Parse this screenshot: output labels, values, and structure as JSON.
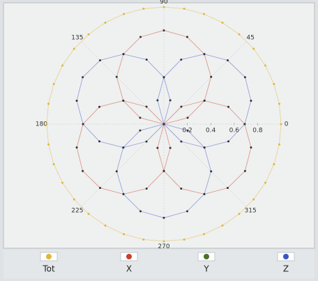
{
  "chart_data": {
    "type": "polar",
    "rlim": [
      0,
      1
    ],
    "rticks": [
      0.2,
      0.4,
      0.6,
      0.8
    ],
    "thetaticks": [
      0,
      45,
      90,
      135,
      180,
      225,
      270,
      315
    ],
    "grid": true,
    "legend": "bottom",
    "series": [
      {
        "name": "Tot",
        "color": "#e0b83a",
        "theta": [
          0,
          10,
          20,
          30,
          40,
          50,
          60,
          70,
          80,
          90,
          100,
          110,
          120,
          130,
          140,
          150,
          160,
          170,
          180,
          190,
          200,
          210,
          220,
          230,
          240,
          250,
          260,
          270,
          280,
          290,
          300,
          310,
          320,
          330,
          340,
          350
        ],
        "r": [
          1,
          1,
          1,
          1,
          1,
          1,
          1,
          1,
          1,
          1,
          1,
          1,
          1,
          1,
          1,
          1,
          1,
          1,
          1,
          1,
          1,
          1,
          1,
          1,
          1,
          1,
          1,
          1,
          1,
          1,
          1,
          1,
          1,
          1,
          1,
          1
        ]
      },
      {
        "name": "X",
        "color": "#c8402e",
        "theta": [
          0,
          15,
          30,
          45,
          60,
          75,
          90,
          105,
          120,
          135,
          150,
          165,
          180,
          null,
          120,
          135,
          150,
          165,
          180,
          195,
          210,
          225,
          240,
          255,
          270,
          285,
          300,
          null,
          240,
          255,
          270,
          285,
          300,
          315,
          330,
          345,
          0,
          15,
          30,
          45,
          60
        ],
        "r": [
          0,
          0.21,
          0.4,
          0.57,
          0.69,
          0.77,
          0.8,
          0.77,
          0.69,
          0.57,
          0.4,
          0.21,
          0,
          null,
          0,
          0.21,
          0.4,
          0.57,
          0.69,
          0.77,
          0.8,
          0.77,
          0.69,
          0.57,
          0.4,
          0.21,
          0,
          null,
          0,
          0.21,
          0.4,
          0.57,
          0.69,
          0.77,
          0.8,
          0.77,
          0.69,
          0.57,
          0.4,
          0.21,
          0
        ]
      },
      {
        "name": "Y",
        "color": "#4a7424",
        "theta": [
          0,
          90,
          180,
          270
        ],
        "r": [
          0,
          0,
          0,
          0
        ]
      },
      {
        "name": "Z",
        "color": "#3a56c4",
        "theta": [
          300,
          315,
          330,
          345,
          0,
          15,
          30,
          45,
          60,
          75,
          90,
          105,
          120,
          null,
          60,
          75,
          90,
          105,
          120,
          135,
          150,
          165,
          180,
          195,
          210,
          225,
          240,
          null,
          180,
          195,
          210,
          225,
          240,
          255,
          270,
          285,
          300,
          315,
          330,
          345,
          0
        ],
        "r": [
          0,
          0.21,
          0.4,
          0.57,
          0.69,
          0.77,
          0.8,
          0.77,
          0.69,
          0.57,
          0.4,
          0.21,
          0,
          null,
          0,
          0.21,
          0.4,
          0.57,
          0.69,
          0.77,
          0.8,
          0.77,
          0.69,
          0.57,
          0.4,
          0.21,
          0,
          null,
          0,
          0.21,
          0.4,
          0.57,
          0.69,
          0.77,
          0.8,
          0.77,
          0.69,
          0.57,
          0.4,
          0.21,
          0
        ]
      }
    ]
  }
}
